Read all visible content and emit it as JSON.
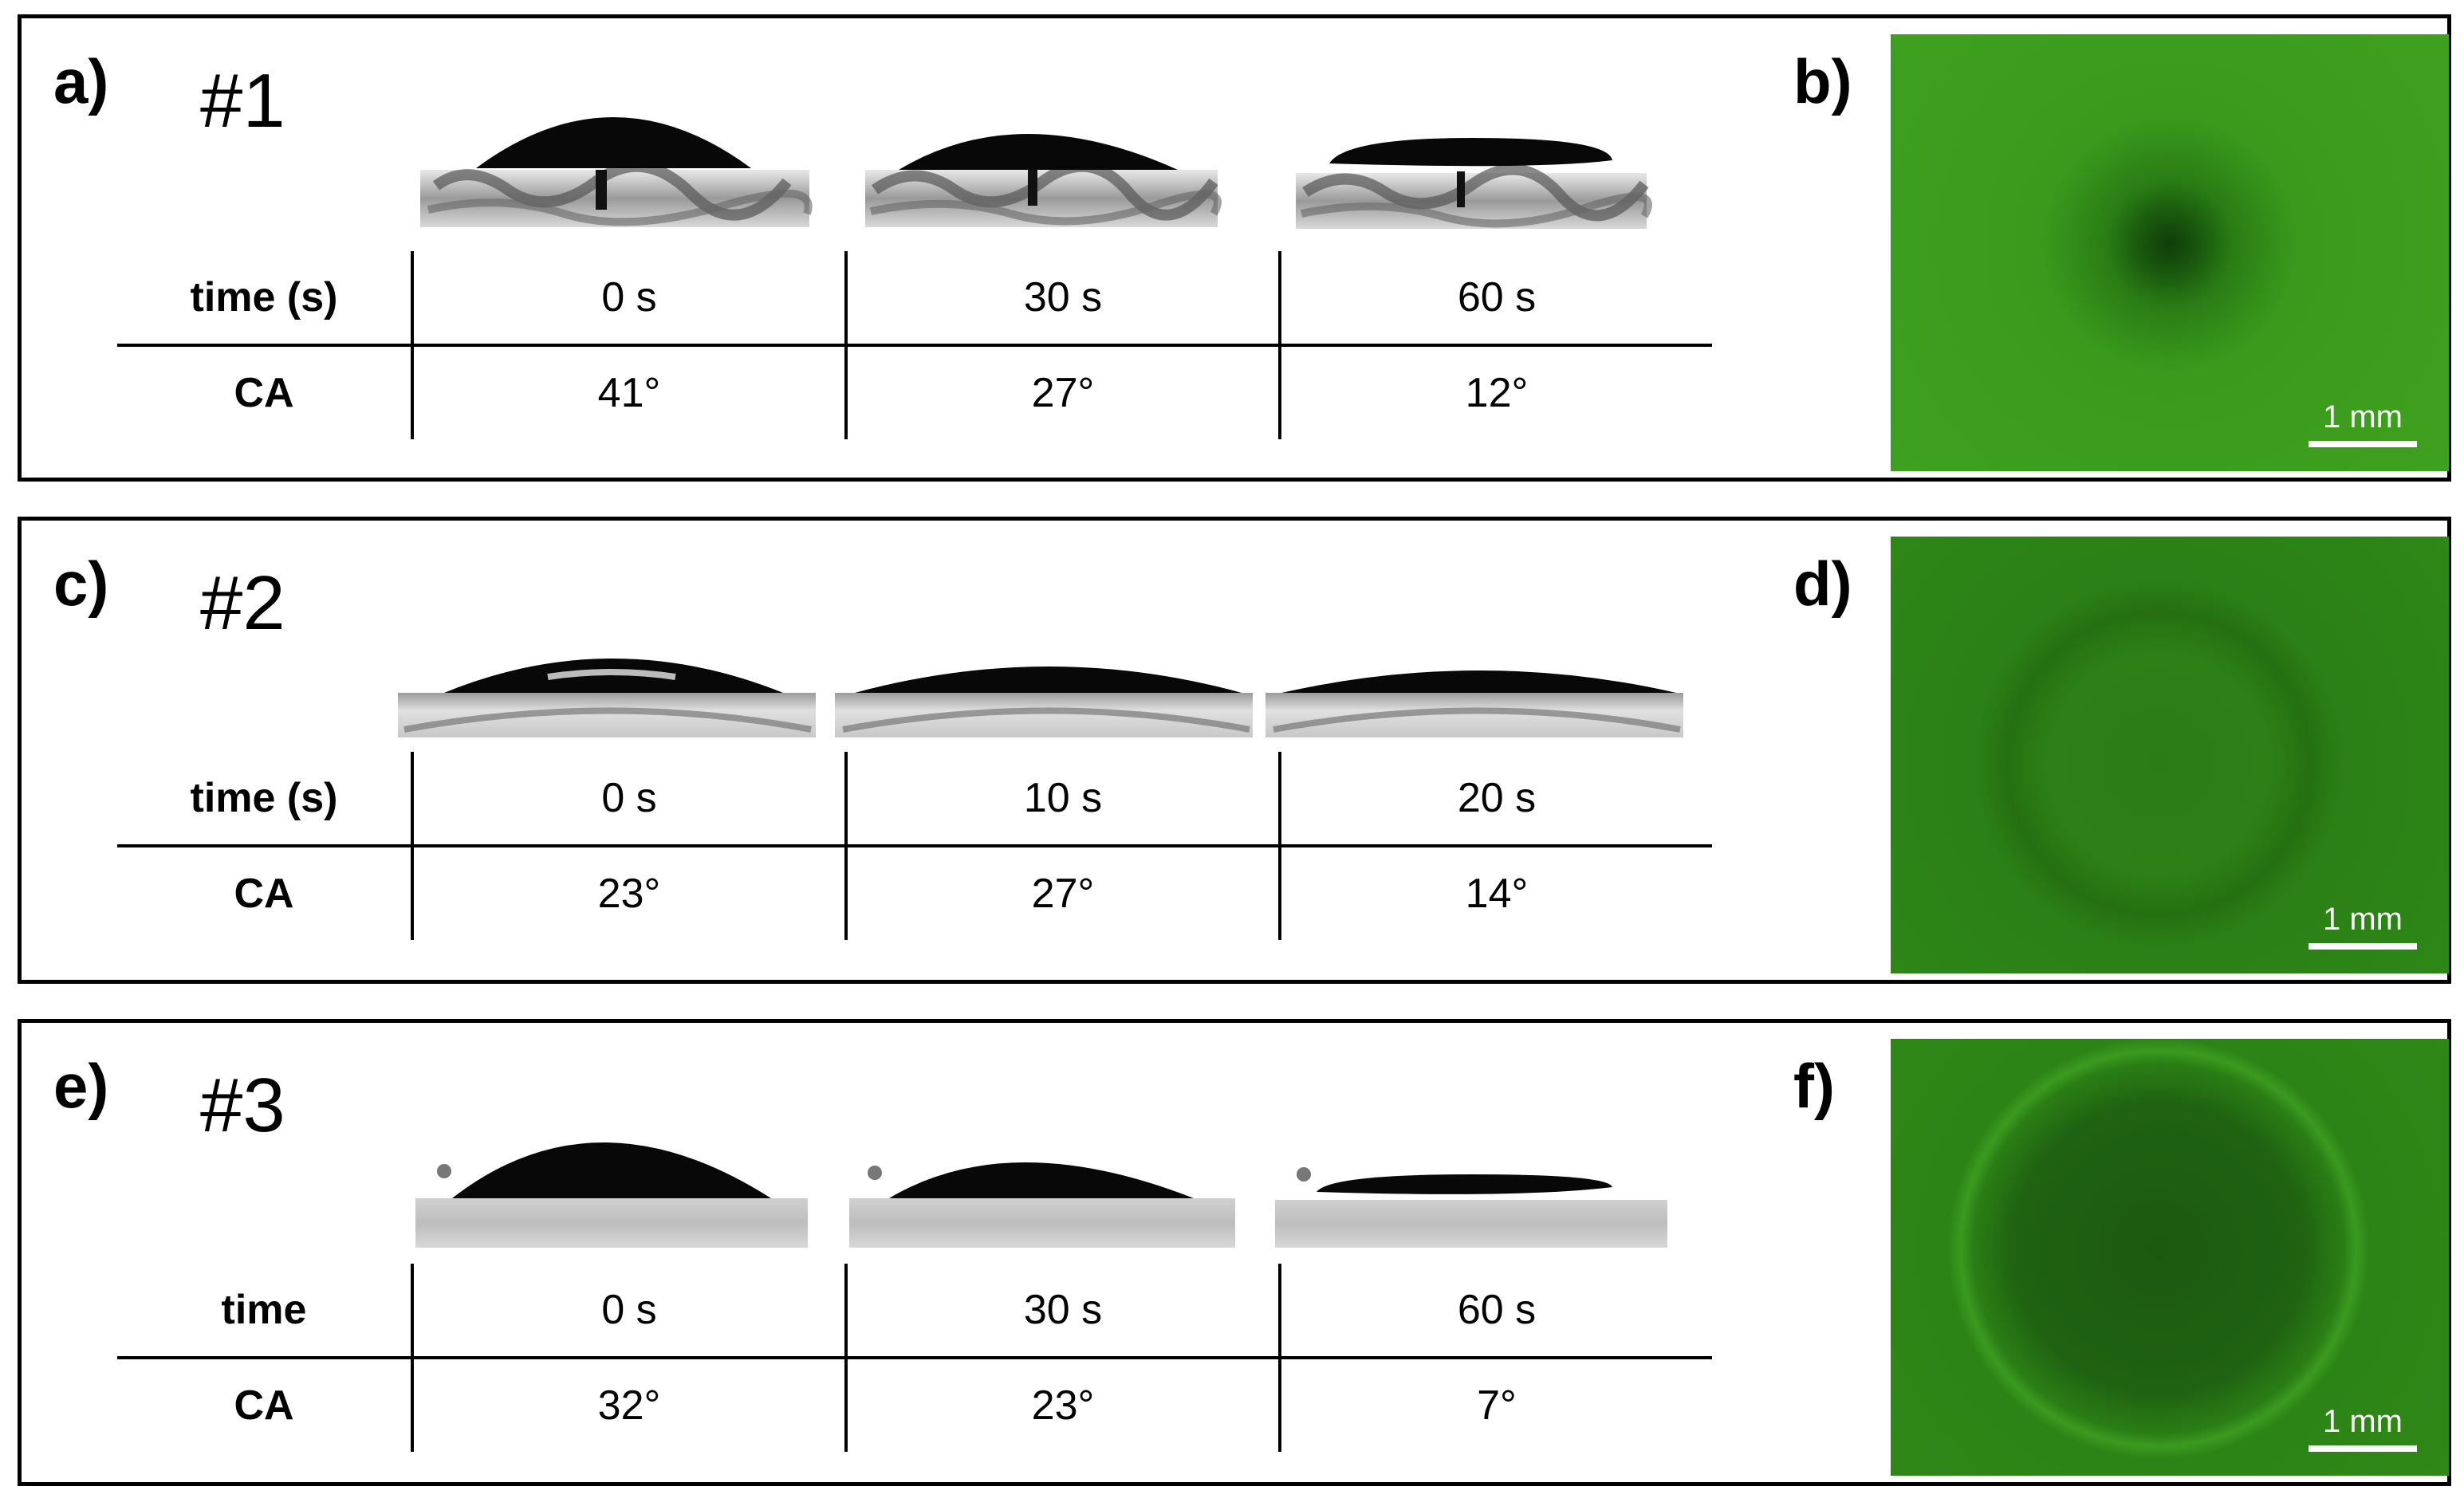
{
  "panels": [
    {
      "label_left": "a)",
      "label_right": "b)",
      "sample": "#1",
      "row1_header": "time (s)",
      "row2_header": "CA",
      "times": [
        "0 s",
        "30 s",
        "60 s"
      ],
      "contact_angles": [
        "41°",
        "27°",
        "12°"
      ],
      "scale_bar": "1 mm"
    },
    {
      "label_left": "c)",
      "label_right": "d)",
      "sample": "#2",
      "row1_header": "time (s)",
      "row2_header": "CA",
      "times": [
        "0 s",
        "10 s",
        "20 s"
      ],
      "contact_angles": [
        "23°",
        "27°",
        "14°"
      ],
      "scale_bar": "1 mm"
    },
    {
      "label_left": "e)",
      "label_right": "f)",
      "sample": "#3",
      "row1_header": "time",
      "row2_header": "CA",
      "times": [
        "0 s",
        "30 s",
        "60 s"
      ],
      "contact_angles": [
        "32°",
        "23°",
        "7°"
      ],
      "scale_bar": "1 mm"
    }
  ],
  "colors": {
    "micrograph_green": "#2f8f17",
    "micrograph_green_dark": "#1e6a10",
    "droplet": "#080808"
  }
}
